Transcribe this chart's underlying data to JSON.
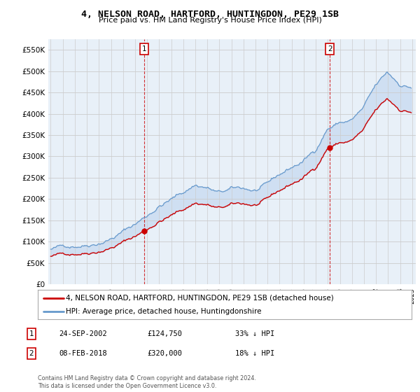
{
  "title": "4, NELSON ROAD, HARTFORD, HUNTINGDON, PE29 1SB",
  "subtitle": "Price paid vs. HM Land Registry's House Price Index (HPI)",
  "property_label": "4, NELSON ROAD, HARTFORD, HUNTINGDON, PE29 1SB (detached house)",
  "hpi_label": "HPI: Average price, detached house, Huntingdonshire",
  "transaction1_date": "24-SEP-2002",
  "transaction1_price": 124750,
  "transaction1_note": "33% ↓ HPI",
  "transaction2_date": "08-FEB-2018",
  "transaction2_price": 320000,
  "transaction2_note": "18% ↓ HPI",
  "footer": "Contains HM Land Registry data © Crown copyright and database right 2024.\nThis data is licensed under the Open Government Licence v3.0.",
  "property_color": "#cc0000",
  "hpi_color": "#6699cc",
  "fill_color": "#ddeeff",
  "ylim": [
    0,
    575000
  ],
  "yticks": [
    0,
    50000,
    100000,
    150000,
    200000,
    250000,
    300000,
    350000,
    400000,
    450000,
    500000,
    550000
  ],
  "xlim_left": 1994.8,
  "xlim_right": 2025.3,
  "background_color": "#ffffff",
  "grid_color": "#cccccc"
}
